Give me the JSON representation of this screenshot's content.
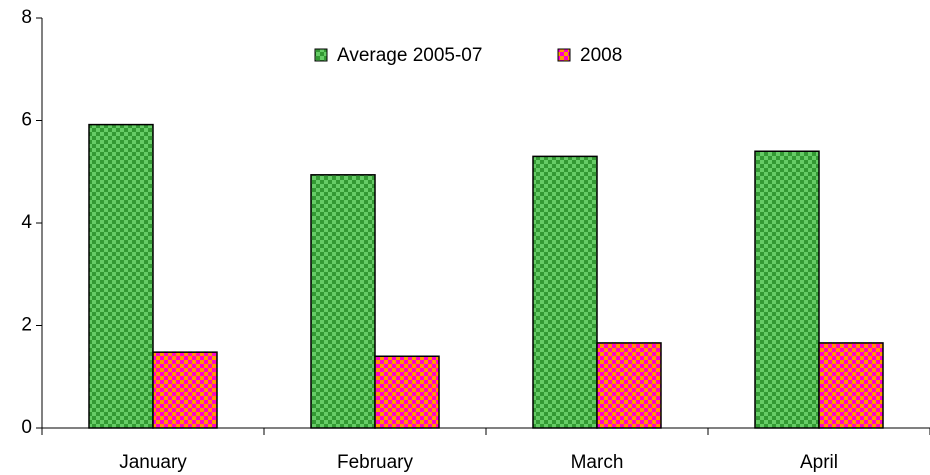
{
  "chart_data": {
    "type": "bar",
    "categories": [
      "January",
      "February",
      "March",
      "April"
    ],
    "series": [
      {
        "name": "Average 2005-07",
        "color": "#339933",
        "pattern_color": "#66cc66",
        "values": [
          5.92,
          4.94,
          5.3,
          5.4
        ]
      },
      {
        "name": "2008",
        "color": "#ff00cc",
        "pattern_color": "#ff9900",
        "values": [
          1.48,
          1.4,
          1.66,
          1.66
        ]
      }
    ],
    "ylim": [
      0,
      8
    ],
    "yticks": [
      0,
      2,
      4,
      6,
      8
    ],
    "grid": false,
    "legend": "top"
  }
}
